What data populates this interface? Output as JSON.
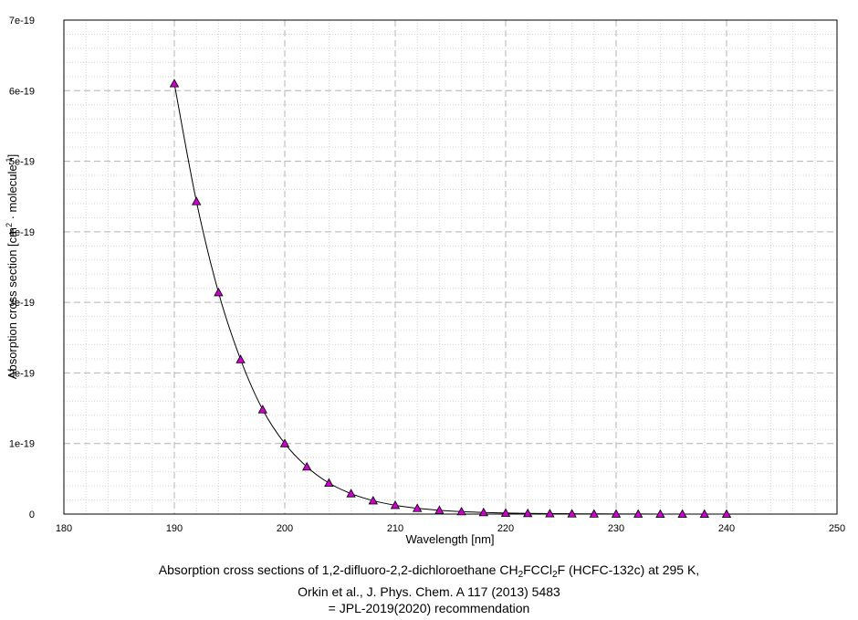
{
  "chart_data": {
    "type": "scatter",
    "xlabel": "Wavelength [nm]",
    "ylabel_parts": {
      "main": "Absorption cross section [cm",
      "sup1": "2",
      "mid": " · molecule",
      "sup2": "-1",
      "end": "]"
    },
    "xlim": [
      180,
      250
    ],
    "ylim": [
      0,
      7e-19
    ],
    "x_ticks": [
      180,
      190,
      200,
      210,
      220,
      230,
      240,
      250
    ],
    "y_ticks": [
      {
        "value": 0,
        "label": "0"
      },
      {
        "value": 1e-19,
        "label": "1e-19"
      },
      {
        "value": 2e-19,
        "label": "2e-19"
      },
      {
        "value": 3e-19,
        "label": "3e-19"
      },
      {
        "value": 4e-19,
        "label": "4e-19"
      },
      {
        "value": 5e-19,
        "label": "5e-19"
      },
      {
        "value": 6e-19,
        "label": "6e-19"
      },
      {
        "value": 7e-19,
        "label": "7e-19"
      }
    ],
    "grid": true,
    "marker_color": "#cc00cc",
    "line_color": "#000000",
    "x": [
      190,
      192,
      194,
      196,
      198,
      200,
      202,
      204,
      206,
      208,
      210,
      212,
      214,
      216,
      218,
      220,
      222,
      224,
      226,
      228,
      230,
      232,
      234,
      236,
      238,
      240
    ],
    "y": [
      6.1e-19,
      4.43e-19,
      3.14e-19,
      2.19e-19,
      1.48e-19,
      1e-19,
      6.7e-20,
      4.4e-20,
      2.9e-20,
      1.9e-20,
      1.25e-20,
      8.2e-21,
      5.4e-21,
      3.5e-21,
      2.3e-21,
      1.5e-21,
      1e-21,
      6.6e-22,
      4.3e-22,
      2.8e-22,
      1.8e-22,
      1.2e-22,
      7.9e-23,
      5.2e-23,
      3.4e-23,
      2.2e-23
    ]
  },
  "caption": {
    "line1_a": "Absorption cross sections of 1,2-difluoro-2,2-dichloroethane CH",
    "line1_sub1": "2",
    "line1_b": "FCCl",
    "line1_sub2": "2",
    "line1_c": "F (HCFC-132c)  at 295 K,",
    "line2": "Orkin et al., J. Phys. Chem. A 117 (2013) 5483",
    "line3": "= JPL-2019(2020) recommendation"
  }
}
